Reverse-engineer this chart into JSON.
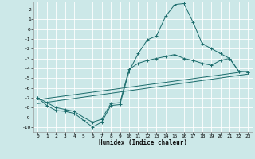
{
  "xlabel": "Humidex (Indice chaleur)",
  "bg_color": "#cce8e8",
  "grid_color": "#ffffff",
  "line_color": "#1a6b6b",
  "xlim": [
    -0.5,
    23.5
  ],
  "ylim": [
    -10.5,
    2.8
  ],
  "xticks": [
    0,
    1,
    2,
    3,
    4,
    5,
    6,
    7,
    8,
    9,
    10,
    11,
    12,
    13,
    14,
    15,
    16,
    17,
    18,
    19,
    20,
    21,
    22,
    23
  ],
  "yticks": [
    -10,
    -9,
    -8,
    -7,
    -6,
    -5,
    -4,
    -3,
    -2,
    -1,
    0,
    1,
    2
  ],
  "line1_x": [
    0,
    1,
    2,
    3,
    4,
    5,
    6,
    7,
    8,
    9,
    10,
    11,
    12,
    13,
    14,
    15,
    16,
    17,
    18,
    19,
    20,
    21,
    22,
    23
  ],
  "line1_y": [
    -7.0,
    -7.8,
    -8.3,
    -8.4,
    -8.6,
    -9.3,
    -10.0,
    -9.5,
    -7.8,
    -7.7,
    -4.3,
    -2.5,
    -1.1,
    -0.7,
    1.3,
    2.5,
    2.6,
    0.7,
    -1.5,
    -2.0,
    -2.5,
    -3.0,
    -4.3,
    -4.4
  ],
  "line2_x": [
    0,
    1,
    2,
    3,
    4,
    5,
    6,
    7,
    8,
    9,
    10,
    11,
    12,
    13,
    14,
    15,
    16,
    17,
    18,
    19,
    20,
    21,
    22,
    23
  ],
  "line2_y": [
    -7.0,
    -7.5,
    -8.0,
    -8.2,
    -8.4,
    -9.0,
    -9.5,
    -9.2,
    -7.6,
    -7.5,
    -4.1,
    -3.5,
    -3.2,
    -3.0,
    -2.8,
    -2.6,
    -3.0,
    -3.2,
    -3.5,
    -3.7,
    -3.2,
    -3.0,
    -4.3,
    -4.4
  ],
  "line3_x": [
    0,
    23
  ],
  "line3_y": [
    -7.2,
    -4.3
  ],
  "line4_x": [
    0,
    23
  ],
  "line4_y": [
    -7.6,
    -4.6
  ]
}
